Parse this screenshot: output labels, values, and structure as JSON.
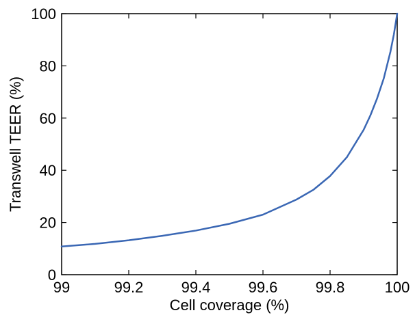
{
  "chart_data": {
    "type": "line",
    "title": "",
    "xlabel": "Cell coverage (%)",
    "ylabel": "Transwell TEER (%)",
    "xlim": [
      99,
      100
    ],
    "ylim": [
      0,
      100
    ],
    "grid": false,
    "x_ticks": [
      "99",
      "99.2",
      "99.4",
      "99.6",
      "99.8",
      "100"
    ],
    "y_ticks": [
      "0",
      "20",
      "40",
      "60",
      "80",
      "100"
    ],
    "series": [
      {
        "color": "#3a67b4",
        "x": [
          99.0,
          99.1,
          99.2,
          99.3,
          99.4,
          99.5,
          99.6,
          99.7,
          99.75,
          99.8,
          99.85,
          99.9,
          99.92,
          99.94,
          99.96,
          99.98,
          99.99,
          100.0
        ],
        "y": [
          10.8,
          11.8,
          13.2,
          14.9,
          16.9,
          19.5,
          23.0,
          28.8,
          32.5,
          37.8,
          45.0,
          55.5,
          61.0,
          67.5,
          75.2,
          85.5,
          92.0,
          100.0
        ]
      }
    ]
  }
}
